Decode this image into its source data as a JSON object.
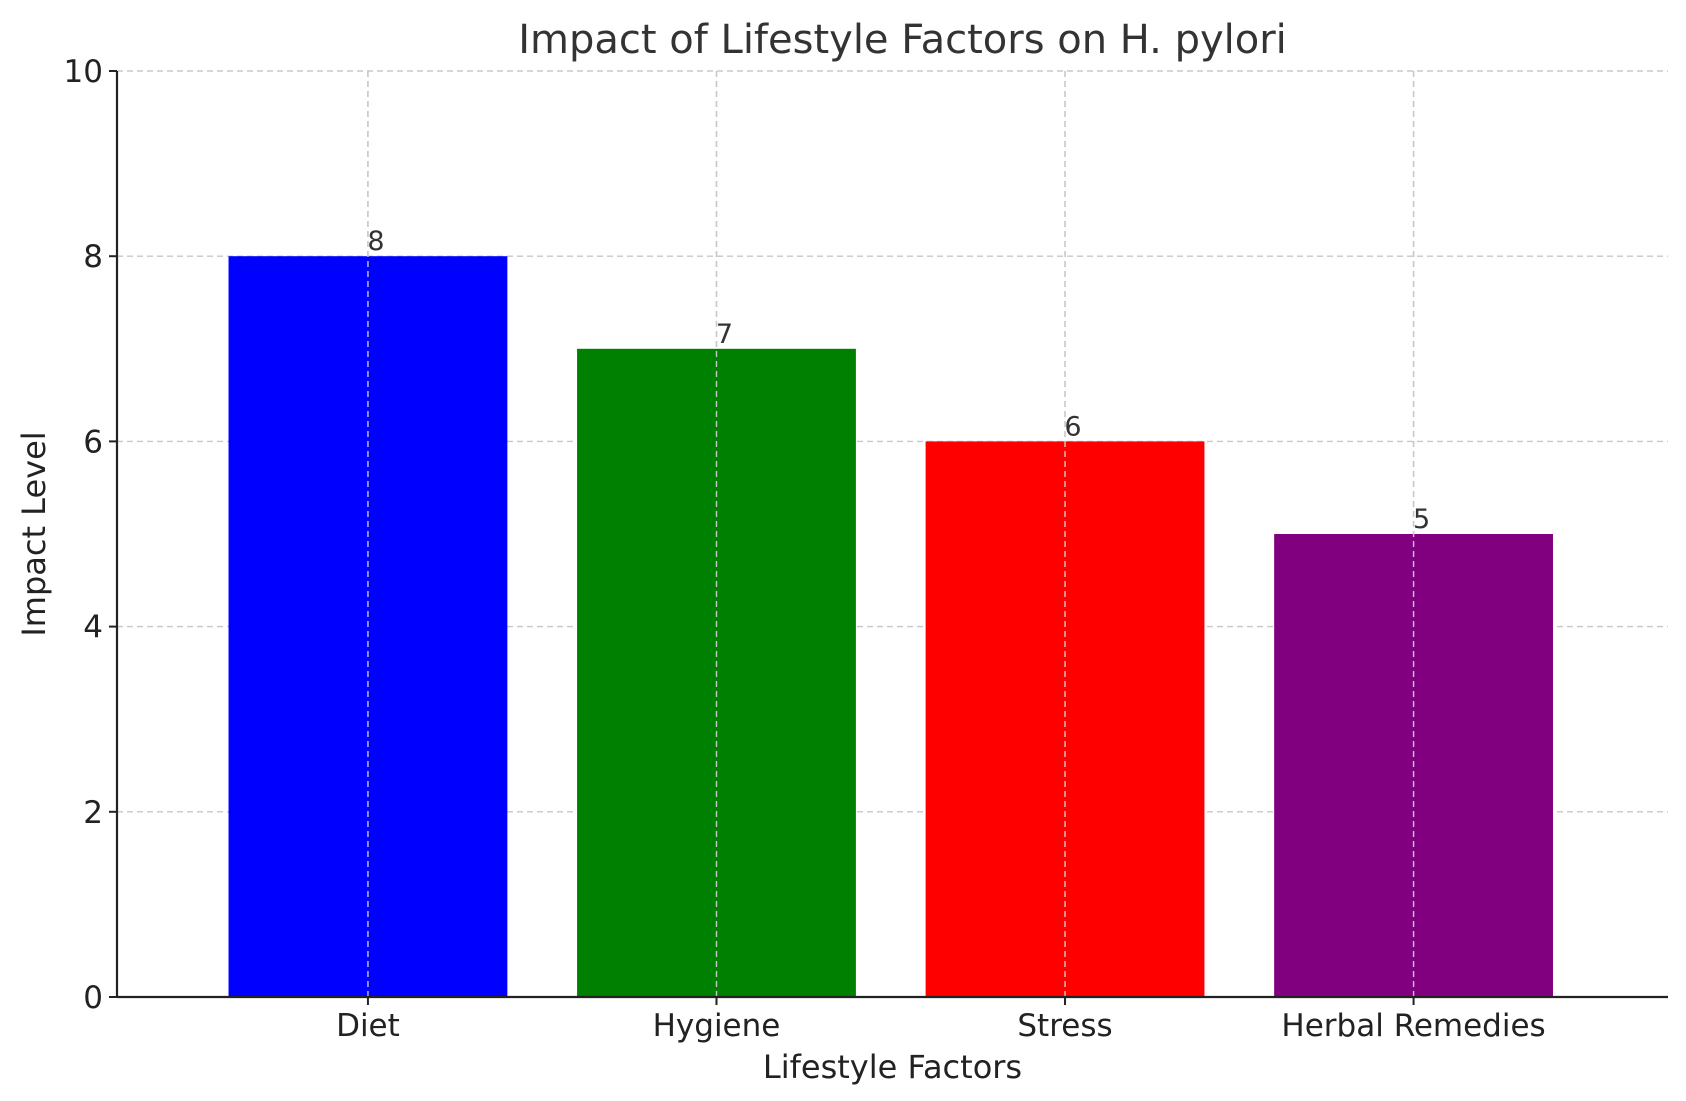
{
  "chart_data": {
    "type": "bar",
    "title": "Impact of Lifestyle Factors on H. pylori",
    "xlabel": "Lifestyle Factors",
    "ylabel": "Impact Level",
    "categories": [
      "Diet",
      "Hygiene",
      "Stress",
      "Herbal Remedies"
    ],
    "values": [
      8,
      7,
      6,
      5
    ],
    "data_labels": [
      "8",
      "7",
      "6",
      "5"
    ],
    "colors": [
      "#0000ff",
      "#008000",
      "#ff0000",
      "#800080"
    ],
    "ylim": [
      0,
      10
    ],
    "yticks": [
      0,
      2,
      4,
      6,
      8,
      10
    ],
    "ytick_labels": [
      "0",
      "2",
      "4",
      "6",
      "8",
      "10"
    ],
    "grid": true
  }
}
